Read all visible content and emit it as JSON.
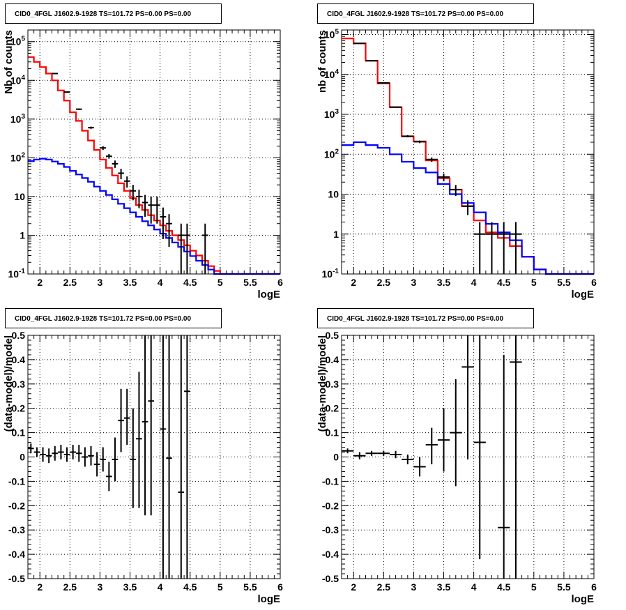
{
  "colors": {
    "total_model": "#ff0000",
    "component_model": "#0000ff",
    "data": "#000000",
    "grid": "#000000",
    "frame": "#000000",
    "background": "#ffffff"
  },
  "chart_data": [
    {
      "type": "line",
      "title": "CID0_4FGL J1602.9-1928 TS=101.72 PS=0.00 PS=0.00",
      "xlabel": "logE",
      "ylabel": "Nb of counts",
      "xlim": [
        1.8,
        6.0
      ],
      "ylim": [
        0.1,
        200000
      ],
      "yscale": "log",
      "grid": true,
      "x_ticks": [
        "2",
        "2.5",
        "3",
        "3.5",
        "4",
        "4.5",
        "5",
        "5.5",
        "6"
      ],
      "y_ticks": [
        "10^-1",
        "1",
        "10",
        "10^2",
        "10^3",
        "10^4",
        "10^5"
      ],
      "series": [
        {
          "kind": "step",
          "color": "red",
          "edges": [
            1.8,
            1.9,
            2.0,
            2.1,
            2.2,
            2.3,
            2.4,
            2.5,
            2.6,
            2.7,
            2.8,
            2.9,
            3.0,
            3.1,
            3.2,
            3.3,
            3.4,
            3.5,
            3.6,
            3.7,
            3.8,
            3.9,
            4.0,
            4.1,
            4.2,
            4.3,
            4.4,
            4.5,
            4.6,
            4.7,
            4.8,
            4.9,
            5.0,
            5.1,
            5.2,
            5.3,
            5.4,
            5.5,
            5.6,
            5.7,
            5.8,
            5.9,
            6.0
          ],
          "values": [
            40000,
            30000,
            22000,
            15000,
            10000,
            5500,
            3000,
            1500,
            900,
            500,
            280,
            160,
            90,
            55,
            35,
            22,
            14,
            9,
            6,
            4.5,
            3.3,
            2.4,
            1.8,
            1.3,
            1.0,
            0.75,
            0.55,
            0.4,
            0.3,
            0.22,
            0.16,
            0.12,
            0.1,
            0.1,
            0.1,
            0.1,
            0.1,
            0.1,
            0.1,
            0.1,
            0.1,
            0.1
          ]
        },
        {
          "kind": "step",
          "color": "blue",
          "edges": [
            1.8,
            1.9,
            2.0,
            2.1,
            2.2,
            2.3,
            2.4,
            2.5,
            2.6,
            2.7,
            2.8,
            2.9,
            3.0,
            3.1,
            3.2,
            3.3,
            3.4,
            3.5,
            3.6,
            3.7,
            3.8,
            3.9,
            4.0,
            4.1,
            4.2,
            4.3,
            4.4,
            4.5,
            4.6,
            4.7,
            4.8,
            4.9,
            5.0,
            5.1,
            5.2,
            5.3,
            5.4,
            5.5,
            5.6,
            5.7,
            5.8,
            5.9,
            6.0
          ],
          "values": [
            82,
            90,
            95,
            90,
            80,
            70,
            58,
            46,
            37,
            30,
            24,
            18,
            14,
            11,
            8.5,
            6.5,
            5,
            3.9,
            3.0,
            2.3,
            1.8,
            1.4,
            1.1,
            0.85,
            0.65,
            0.5,
            0.38,
            0.29,
            0.22,
            0.17,
            0.13,
            0.1,
            0.1,
            0.1,
            0.1,
            0.1,
            0.1,
            0.1,
            0.1,
            0.1,
            0.1,
            0.1
          ]
        },
        {
          "kind": "points",
          "color": "black",
          "x": [
            2.25,
            2.45,
            2.65,
            2.85,
            3.05,
            3.15,
            3.25,
            3.35,
            3.45,
            3.55,
            3.65,
            3.75,
            3.85,
            3.95,
            4.05,
            4.15,
            4.35,
            4.45,
            4.75
          ],
          "y": [
            15000,
            5000,
            1800,
            600,
            180,
            110,
            70,
            40,
            25,
            14,
            10,
            7,
            6,
            6,
            3,
            2,
            1,
            1,
            1
          ],
          "xerr": 0.05,
          "y_low": [
            14500,
            4850,
            1720,
            560,
            160,
            95,
            55,
            28,
            17,
            8,
            5,
            3,
            2,
            2,
            0.8,
            0.5,
            0.1,
            0.1,
            0.1
          ],
          "y_high": [
            15500,
            5150,
            1880,
            640,
            200,
            125,
            85,
            52,
            33,
            20,
            15,
            11,
            10,
            10,
            5.2,
            3.5,
            2,
            2,
            2
          ]
        }
      ]
    },
    {
      "type": "line",
      "title": "CID0_4FGL J1602.9-1928 TS=101.72 PS=0.00 PS=0.00",
      "xlabel": "logE",
      "ylabel": "nb of counts",
      "xlim": [
        1.8,
        6.0
      ],
      "ylim": [
        0.1,
        130000
      ],
      "yscale": "log",
      "grid": true,
      "x_ticks": [
        "2",
        "2.5",
        "3",
        "3.5",
        "4",
        "4.5",
        "5",
        "5.5",
        "6"
      ],
      "y_ticks": [
        "10^-1",
        "1",
        "10",
        "10^2",
        "10^3",
        "10^4",
        "10^5"
      ],
      "series": [
        {
          "kind": "step",
          "color": "red",
          "edges": [
            1.8,
            2.0,
            2.2,
            2.4,
            2.6,
            2.8,
            3.0,
            3.2,
            3.4,
            3.6,
            3.8,
            4.0,
            4.2,
            4.4,
            4.6,
            4.8,
            5.0,
            5.2,
            5.4,
            5.6,
            5.8,
            6.0
          ],
          "values": [
            80000,
            60000,
            22000,
            6000,
            1500,
            280,
            210,
            70,
            25,
            13,
            5,
            2.2,
            1.1,
            0.8,
            0.5,
            0.27,
            0.13,
            0.1,
            0.1,
            0.1,
            0.1
          ]
        },
        {
          "kind": "step",
          "color": "blue",
          "edges": [
            1.8,
            2.0,
            2.2,
            2.4,
            2.6,
            2.8,
            3.0,
            3.2,
            3.4,
            3.6,
            3.8,
            4.0,
            4.2,
            4.4,
            4.6,
            4.8,
            5.0,
            5.2,
            5.4,
            5.6,
            5.8,
            6.0
          ],
          "values": [
            170,
            200,
            170,
            145,
            100,
            65,
            45,
            35,
            18,
            10,
            6,
            3.5,
            1.8,
            1.1,
            0.7,
            0.27,
            0.13,
            0.1,
            0.1,
            0.1,
            0.1
          ]
        },
        {
          "kind": "points",
          "color": "black",
          "x": [
            2.1,
            2.3,
            2.5,
            2.7,
            2.9,
            3.1,
            3.3,
            3.5,
            3.7,
            3.9,
            4.1,
            4.3,
            4.5,
            4.7
          ],
          "y": [
            60000,
            22000,
            6100,
            1520,
            283,
            205,
            74,
            27,
            13,
            5,
            1,
            1,
            1,
            1
          ],
          "xerr": 0.1,
          "y_low": [
            59750,
            21850,
            6020,
            1480,
            266,
            190,
            65,
            21,
            9,
            3,
            0.1,
            0.1,
            0.1,
            0.1
          ],
          "y_high": [
            60250,
            22150,
            6180,
            1560,
            300,
            220,
            83,
            33,
            17,
            7,
            2,
            2,
            2,
            2
          ]
        }
      ]
    },
    {
      "type": "scatter",
      "title": "CID0_4FGL J1602.9-1928 TS=101.72 PS=0.00 PS=0.00",
      "xlabel": "logE",
      "ylabel": "(data-model)/model",
      "xlim": [
        1.8,
        6.0
      ],
      "ylim": [
        -0.5,
        0.5
      ],
      "grid": true,
      "x_ticks": [
        "2",
        "2.5",
        "3",
        "3.5",
        "4",
        "4.5",
        "5",
        "5.5",
        "6"
      ],
      "y_ticks": [
        "-0.5",
        "-0.4",
        "-0.3",
        "-0.2",
        "-0.1",
        "0",
        "0.1",
        "0.2",
        "0.3",
        "0.4",
        "0.5"
      ],
      "series": [
        {
          "kind": "points",
          "color": "black",
          "x": [
            1.85,
            1.95,
            2.05,
            2.15,
            2.25,
            2.35,
            2.45,
            2.55,
            2.65,
            2.75,
            2.85,
            2.95,
            3.05,
            3.15,
            3.25,
            3.35,
            3.45,
            3.55,
            3.65,
            3.75,
            3.85,
            4.05,
            4.15,
            4.35,
            4.45
          ],
          "y": [
            0.035,
            0.02,
            0.01,
            0.005,
            0.015,
            0.02,
            0.01,
            0.02,
            0.015,
            0.0,
            0.005,
            -0.03,
            -0.01,
            -0.08,
            -0.01,
            0.15,
            0.16,
            -0.01,
            0.075,
            0.145,
            0.23,
            0.115,
            -0.005,
            -0.145,
            0.27
          ],
          "xerr": 0.05,
          "y_low": [
            0.015,
            0.0,
            -0.02,
            -0.025,
            -0.015,
            -0.01,
            -0.02,
            -0.01,
            -0.02,
            -0.04,
            -0.035,
            -0.08,
            -0.06,
            -0.14,
            -0.1,
            0.02,
            0.05,
            -0.21,
            -0.21,
            -0.24,
            -0.24,
            -0.5,
            -0.5,
            -0.5,
            -0.5
          ],
          "y_high": [
            0.055,
            0.04,
            0.04,
            0.035,
            0.045,
            0.05,
            0.04,
            0.05,
            0.05,
            0.04,
            0.045,
            0.02,
            0.04,
            -0.02,
            0.08,
            0.28,
            0.28,
            0.2,
            0.35,
            0.5,
            0.5,
            0.5,
            0.5,
            0.5,
            0.5
          ]
        }
      ]
    },
    {
      "type": "scatter",
      "title": "CID0_4FGL J1602.9-1928 TS=101.72 PS=0.00 PS=0.00",
      "xlabel": "logE",
      "ylabel": "(data-model)/model",
      "xlim": [
        1.8,
        6.0
      ],
      "ylim": [
        -0.5,
        0.5
      ],
      "grid": true,
      "x_ticks": [
        "2",
        "2.5",
        "3",
        "3.5",
        "4",
        "4.5",
        "5",
        "5.5",
        "6"
      ],
      "y_ticks": [
        "-0.5",
        "-0.4",
        "-0.3",
        "-0.2",
        "-0.1",
        "0",
        "0.1",
        "0.2",
        "0.3",
        "0.4",
        "0.5"
      ],
      "series": [
        {
          "kind": "points",
          "color": "black",
          "x": [
            1.9,
            2.1,
            2.3,
            2.5,
            2.7,
            2.9,
            3.1,
            3.3,
            3.5,
            3.7,
            3.9,
            4.1,
            4.5,
            4.7
          ],
          "y": [
            0.025,
            0.005,
            0.015,
            0.015,
            0.01,
            -0.01,
            -0.04,
            0.05,
            0.07,
            0.1,
            0.37,
            0.06,
            -0.29,
            0.39
          ],
          "xerr": 0.1,
          "y_low": [
            0.015,
            -0.01,
            0.005,
            0.005,
            -0.005,
            -0.03,
            -0.08,
            -0.03,
            -0.06,
            -0.12,
            -0.01,
            -0.42,
            -0.5,
            -0.5
          ],
          "y_high": [
            0.035,
            0.02,
            0.025,
            0.025,
            0.025,
            0.01,
            0.0,
            0.12,
            0.2,
            0.32,
            0.5,
            0.5,
            0.42,
            0.5
          ]
        }
      ]
    }
  ]
}
